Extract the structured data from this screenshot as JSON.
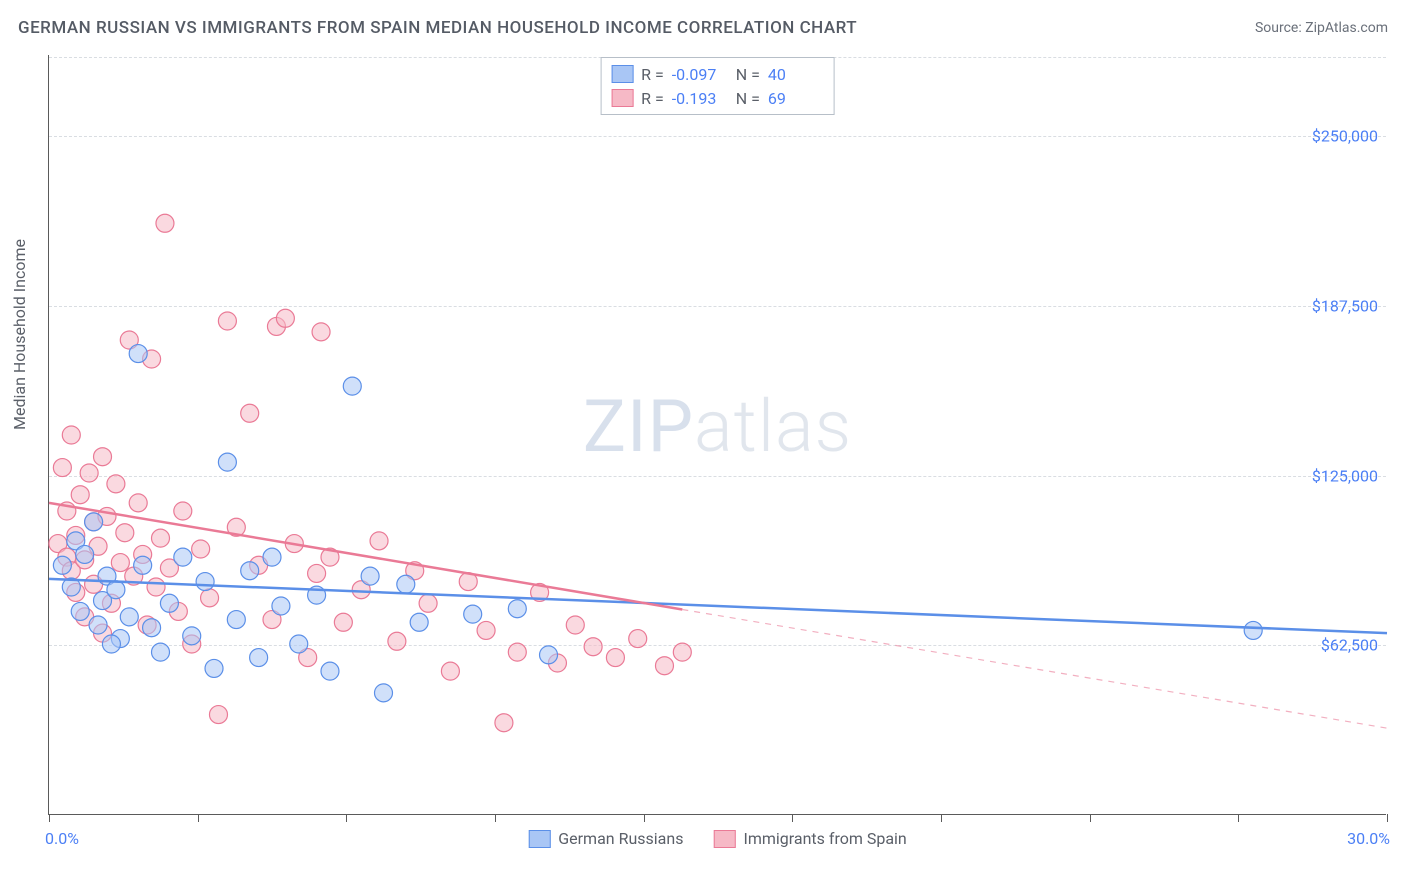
{
  "title": "GERMAN RUSSIAN VS IMMIGRANTS FROM SPAIN MEDIAN HOUSEHOLD INCOME CORRELATION CHART",
  "source_prefix": "Source: ",
  "source_name": "ZipAtlas.com",
  "watermark_a": "ZIP",
  "watermark_b": "atlas",
  "y_axis_label": "Median Household Income",
  "chart": {
    "type": "scatter",
    "background_color": "#ffffff",
    "grid_color": "#d9dde2",
    "axis_color": "#5a5a5a",
    "tick_label_color": "#4b7ff5",
    "xlim": [
      0,
      30
    ],
    "ylim": [
      0,
      280000
    ],
    "y_ticks": [
      {
        "v": 62500,
        "label": "$62,500"
      },
      {
        "v": 125000,
        "label": "$125,000"
      },
      {
        "v": 187500,
        "label": "$187,500"
      },
      {
        "v": 250000,
        "label": "$250,000"
      }
    ],
    "x_ticks": [
      0,
      3.33,
      6.67,
      10,
      13.33,
      16.67,
      20,
      23.33,
      26.67,
      30
    ],
    "x_min_label": "0.0%",
    "x_max_label": "30.0%",
    "marker_radius": 9,
    "marker_opacity": 0.55,
    "line_width": 2.5,
    "series": [
      {
        "id": "german_russians",
        "name": "German Russians",
        "color_fill": "#a9c6f5",
        "color_stroke": "#5b8fe8",
        "R": "-0.097",
        "N": "40",
        "trend": {
          "y_at_x0": 87000,
          "y_at_x30": 67000,
          "solid_until_x": 30
        },
        "points": [
          [
            0.3,
            92000
          ],
          [
            0.5,
            84000
          ],
          [
            0.6,
            101000
          ],
          [
            0.7,
            75000
          ],
          [
            0.8,
            96000
          ],
          [
            1.0,
            108000
          ],
          [
            1.1,
            70000
          ],
          [
            1.2,
            79000
          ],
          [
            1.3,
            88000
          ],
          [
            1.5,
            83000
          ],
          [
            1.6,
            65000
          ],
          [
            1.8,
            73000
          ],
          [
            2.0,
            170000
          ],
          [
            2.1,
            92000
          ],
          [
            2.3,
            69000
          ],
          [
            2.5,
            60000
          ],
          [
            2.7,
            78000
          ],
          [
            3.0,
            95000
          ],
          [
            3.2,
            66000
          ],
          [
            3.5,
            86000
          ],
          [
            3.7,
            54000
          ],
          [
            4.0,
            130000
          ],
          [
            4.2,
            72000
          ],
          [
            4.5,
            90000
          ],
          [
            4.7,
            58000
          ],
          [
            5.0,
            95000
          ],
          [
            5.2,
            77000
          ],
          [
            5.6,
            63000
          ],
          [
            6.0,
            81000
          ],
          [
            6.3,
            53000
          ],
          [
            6.8,
            158000
          ],
          [
            7.2,
            88000
          ],
          [
            7.5,
            45000
          ],
          [
            8.0,
            85000
          ],
          [
            8.3,
            71000
          ],
          [
            9.5,
            74000
          ],
          [
            10.5,
            76000
          ],
          [
            11.2,
            59000
          ],
          [
            27.0,
            68000
          ],
          [
            1.4,
            63000
          ]
        ]
      },
      {
        "id": "immigrants_spain",
        "name": "Immigrants from Spain",
        "color_fill": "#f6b9c6",
        "color_stroke": "#ea7a96",
        "R": "-0.193",
        "N": "69",
        "trend": {
          "y_at_x0": 115000,
          "y_at_x30": 32000,
          "solid_until_x": 14.2
        },
        "points": [
          [
            0.2,
            100000
          ],
          [
            0.3,
            128000
          ],
          [
            0.4,
            112000
          ],
          [
            0.4,
            95000
          ],
          [
            0.5,
            140000
          ],
          [
            0.5,
            90000
          ],
          [
            0.6,
            103000
          ],
          [
            0.6,
            82000
          ],
          [
            0.7,
            118000
          ],
          [
            0.8,
            94000
          ],
          [
            0.8,
            73000
          ],
          [
            0.9,
            126000
          ],
          [
            1.0,
            108000
          ],
          [
            1.0,
            85000
          ],
          [
            1.1,
            99000
          ],
          [
            1.2,
            132000
          ],
          [
            1.2,
            67000
          ],
          [
            1.3,
            110000
          ],
          [
            1.4,
            78000
          ],
          [
            1.5,
            122000
          ],
          [
            1.6,
            93000
          ],
          [
            1.7,
            104000
          ],
          [
            1.8,
            175000
          ],
          [
            1.9,
            88000
          ],
          [
            2.0,
            115000
          ],
          [
            2.1,
            96000
          ],
          [
            2.2,
            70000
          ],
          [
            2.3,
            168000
          ],
          [
            2.4,
            84000
          ],
          [
            2.5,
            102000
          ],
          [
            2.6,
            218000
          ],
          [
            2.7,
            91000
          ],
          [
            2.9,
            75000
          ],
          [
            3.0,
            112000
          ],
          [
            3.2,
            63000
          ],
          [
            3.4,
            98000
          ],
          [
            3.6,
            80000
          ],
          [
            3.8,
            37000
          ],
          [
            4.0,
            182000
          ],
          [
            4.2,
            106000
          ],
          [
            4.5,
            148000
          ],
          [
            4.7,
            92000
          ],
          [
            5.0,
            72000
          ],
          [
            5.1,
            180000
          ],
          [
            5.3,
            183000
          ],
          [
            5.5,
            100000
          ],
          [
            5.8,
            58000
          ],
          [
            6.0,
            89000
          ],
          [
            6.1,
            178000
          ],
          [
            6.3,
            95000
          ],
          [
            6.6,
            71000
          ],
          [
            7.0,
            83000
          ],
          [
            7.4,
            101000
          ],
          [
            7.8,
            64000
          ],
          [
            8.2,
            90000
          ],
          [
            8.5,
            78000
          ],
          [
            9.0,
            53000
          ],
          [
            9.4,
            86000
          ],
          [
            9.8,
            68000
          ],
          [
            10.2,
            34000
          ],
          [
            10.5,
            60000
          ],
          [
            11.0,
            82000
          ],
          [
            11.4,
            56000
          ],
          [
            11.8,
            70000
          ],
          [
            12.2,
            62000
          ],
          [
            12.7,
            58000
          ],
          [
            13.2,
            65000
          ],
          [
            13.8,
            55000
          ],
          [
            14.2,
            60000
          ]
        ]
      }
    ]
  },
  "stats_legend_labels": {
    "R": "R =",
    "N": "N ="
  }
}
